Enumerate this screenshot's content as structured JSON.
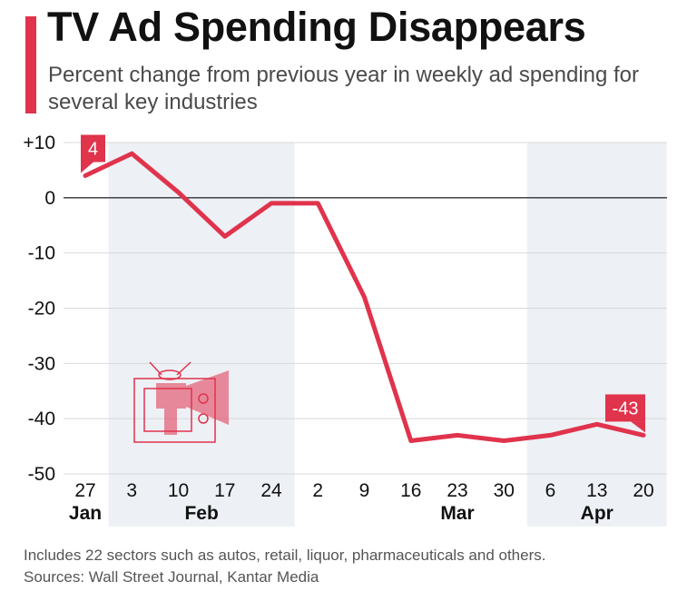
{
  "header": {
    "title": "TV Ad Spending Disappears",
    "subtitle": "Percent change from previous year in weekly ad spending for several key industries"
  },
  "footer": {
    "note": "Includes 22 sectors such as autos, retail, liquor, pharmaceuticals and others.",
    "source": "Sources: Wall Street Journal, Kantar Media"
  },
  "colors": {
    "accent": "#e0334c",
    "shade": "#edf0f5",
    "axis_text": "#111111",
    "grid": "#d8d8d8"
  },
  "illustration": {
    "icon": "tv-megaphone-icon"
  },
  "chart_data": {
    "type": "line",
    "title": "TV Ad Spending Disappears",
    "subtitle": "Percent change from previous year in weekly ad spending for several key industries",
    "categories": [
      "27",
      "3",
      "10",
      "17",
      "24",
      "2",
      "9",
      "16",
      "23",
      "30",
      "6",
      "13",
      "20"
    ],
    "month_labels": [
      {
        "label": "Jan",
        "index": 0
      },
      {
        "label": "Feb",
        "index": 2.5
      },
      {
        "label": "Mar",
        "index": 8
      },
      {
        "label": "Apr",
        "index": 11
      }
    ],
    "shaded_bands": [
      {
        "from_index": 1,
        "to_index": 4
      },
      {
        "from_index": 10,
        "to_index": 12
      }
    ],
    "series": [
      {
        "values": [
          4,
          8,
          1,
          -7,
          -1,
          -1,
          -18,
          -44,
          -43,
          -44,
          -43,
          -41,
          -43
        ]
      }
    ],
    "data_labels": [
      {
        "index": 0,
        "text": "4"
      },
      {
        "index": 12,
        "text": "-43"
      }
    ],
    "y_ticks": [
      10,
      0,
      -10,
      -20,
      -30,
      -40,
      -50
    ],
    "y_tick_labels": [
      "+10",
      "0",
      "-10",
      "-20",
      "-30",
      "-40",
      "-50"
    ],
    "ylim": [
      -50,
      10
    ],
    "xlabel": "",
    "ylabel": "",
    "grid": true
  }
}
